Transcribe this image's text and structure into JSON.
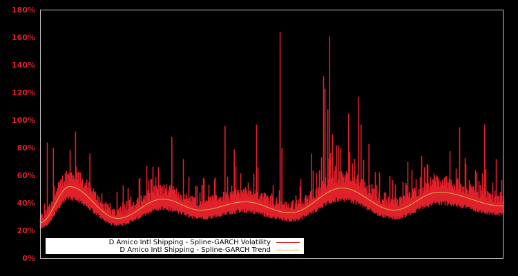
{
  "chart_data": {
    "type": "line",
    "title": "",
    "xlabel": "",
    "ylabel": "",
    "ylim": [
      0,
      180
    ],
    "yticks": [
      "0%",
      "20%",
      "40%",
      "60%",
      "80%",
      "100%",
      "120%",
      "140%",
      "160%",
      "180%"
    ],
    "grid": false,
    "legend_position": "lower-left",
    "background": "#000000",
    "axis_color": "#c8c8c8",
    "tick_label_color": "#e0202a",
    "series": [
      {
        "name": "D Amico Intl Shipping - Spline-GARCH Volatility",
        "color": "#e0202a",
        "description": "Daily conditional volatility oscillating around trend with spikes",
        "spikes": [
          {
            "x": 0.015,
            "y": 84
          },
          {
            "x": 0.028,
            "y": 80
          },
          {
            "x": 0.076,
            "y": 92
          },
          {
            "x": 0.107,
            "y": 76
          },
          {
            "x": 0.179,
            "y": 53
          },
          {
            "x": 0.23,
            "y": 67
          },
          {
            "x": 0.284,
            "y": 88
          },
          {
            "x": 0.309,
            "y": 72
          },
          {
            "x": 0.399,
            "y": 96
          },
          {
            "x": 0.419,
            "y": 79
          },
          {
            "x": 0.467,
            "y": 97
          },
          {
            "x": 0.518,
            "y": 164
          },
          {
            "x": 0.522,
            "y": 80
          },
          {
            "x": 0.586,
            "y": 76
          },
          {
            "x": 0.612,
            "y": 132
          },
          {
            "x": 0.615,
            "y": 123
          },
          {
            "x": 0.621,
            "y": 108
          },
          {
            "x": 0.625,
            "y": 161
          },
          {
            "x": 0.631,
            "y": 90
          },
          {
            "x": 0.666,
            "y": 105
          },
          {
            "x": 0.687,
            "y": 117
          },
          {
            "x": 0.693,
            "y": 97
          },
          {
            "x": 0.71,
            "y": 83
          },
          {
            "x": 0.794,
            "y": 70
          },
          {
            "x": 0.906,
            "y": 95
          },
          {
            "x": 0.96,
            "y": 97
          },
          {
            "x": 0.985,
            "y": 72
          }
        ]
      },
      {
        "name": "D Amico Intl Shipping - Spline-GARCH Trend",
        "color": "#d4b84a",
        "knots": [
          {
            "x": 0.0,
            "y": 26
          },
          {
            "x": 0.063,
            "y": 52
          },
          {
            "x": 0.167,
            "y": 29
          },
          {
            "x": 0.264,
            "y": 43
          },
          {
            "x": 0.346,
            "y": 35
          },
          {
            "x": 0.443,
            "y": 41
          },
          {
            "x": 0.54,
            "y": 33
          },
          {
            "x": 0.652,
            "y": 51
          },
          {
            "x": 0.764,
            "y": 35
          },
          {
            "x": 0.861,
            "y": 48
          },
          {
            "x": 1.0,
            "y": 38
          }
        ]
      }
    ]
  },
  "legend": {
    "items": [
      {
        "label": "D Amico Intl Shipping - Spline-GARCH Volatility",
        "color": "#e0202a"
      },
      {
        "label": "D Amico Intl Shipping - Spline-GARCH Trend",
        "color": "#d4b84a"
      }
    ]
  }
}
